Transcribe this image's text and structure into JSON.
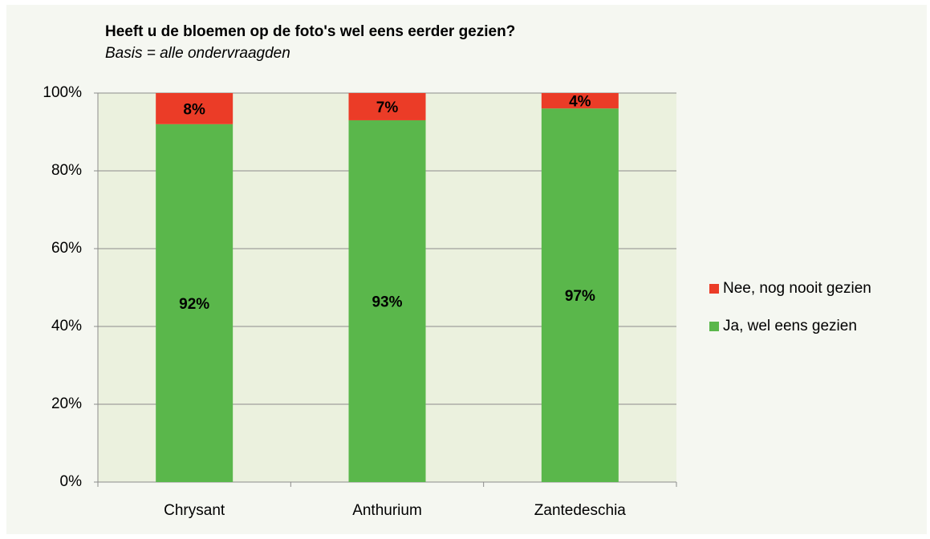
{
  "chart_data": {
    "type": "bar",
    "stacked_percent": true,
    "title": "Heeft u de bloemen op de foto's wel eens eerder gezien?",
    "subtitle": "Basis = alle ondervraagden",
    "categories": [
      "Chrysant",
      "Anthurium",
      "Zantedeschia"
    ],
    "series": [
      {
        "name": "Ja, wel eens gezien",
        "color": "#5ab74b",
        "values": [
          92,
          93,
          97
        ],
        "value_labels": [
          "92%",
          "93%",
          "97%"
        ]
      },
      {
        "name": "Nee, nog nooit gezien",
        "color": "#eb3c27",
        "values": [
          8,
          7,
          4
        ],
        "value_labels": [
          "8%",
          "7%",
          "4%"
        ]
      }
    ],
    "ylim": [
      0,
      100
    ],
    "yticks": [
      {
        "value": 0,
        "label": "0%"
      },
      {
        "value": 20,
        "label": "20%"
      },
      {
        "value": 40,
        "label": "40%"
      },
      {
        "value": 60,
        "label": "60%"
      },
      {
        "value": 80,
        "label": "80%"
      },
      {
        "value": 100,
        "label": "100%"
      }
    ],
    "grid": true
  }
}
